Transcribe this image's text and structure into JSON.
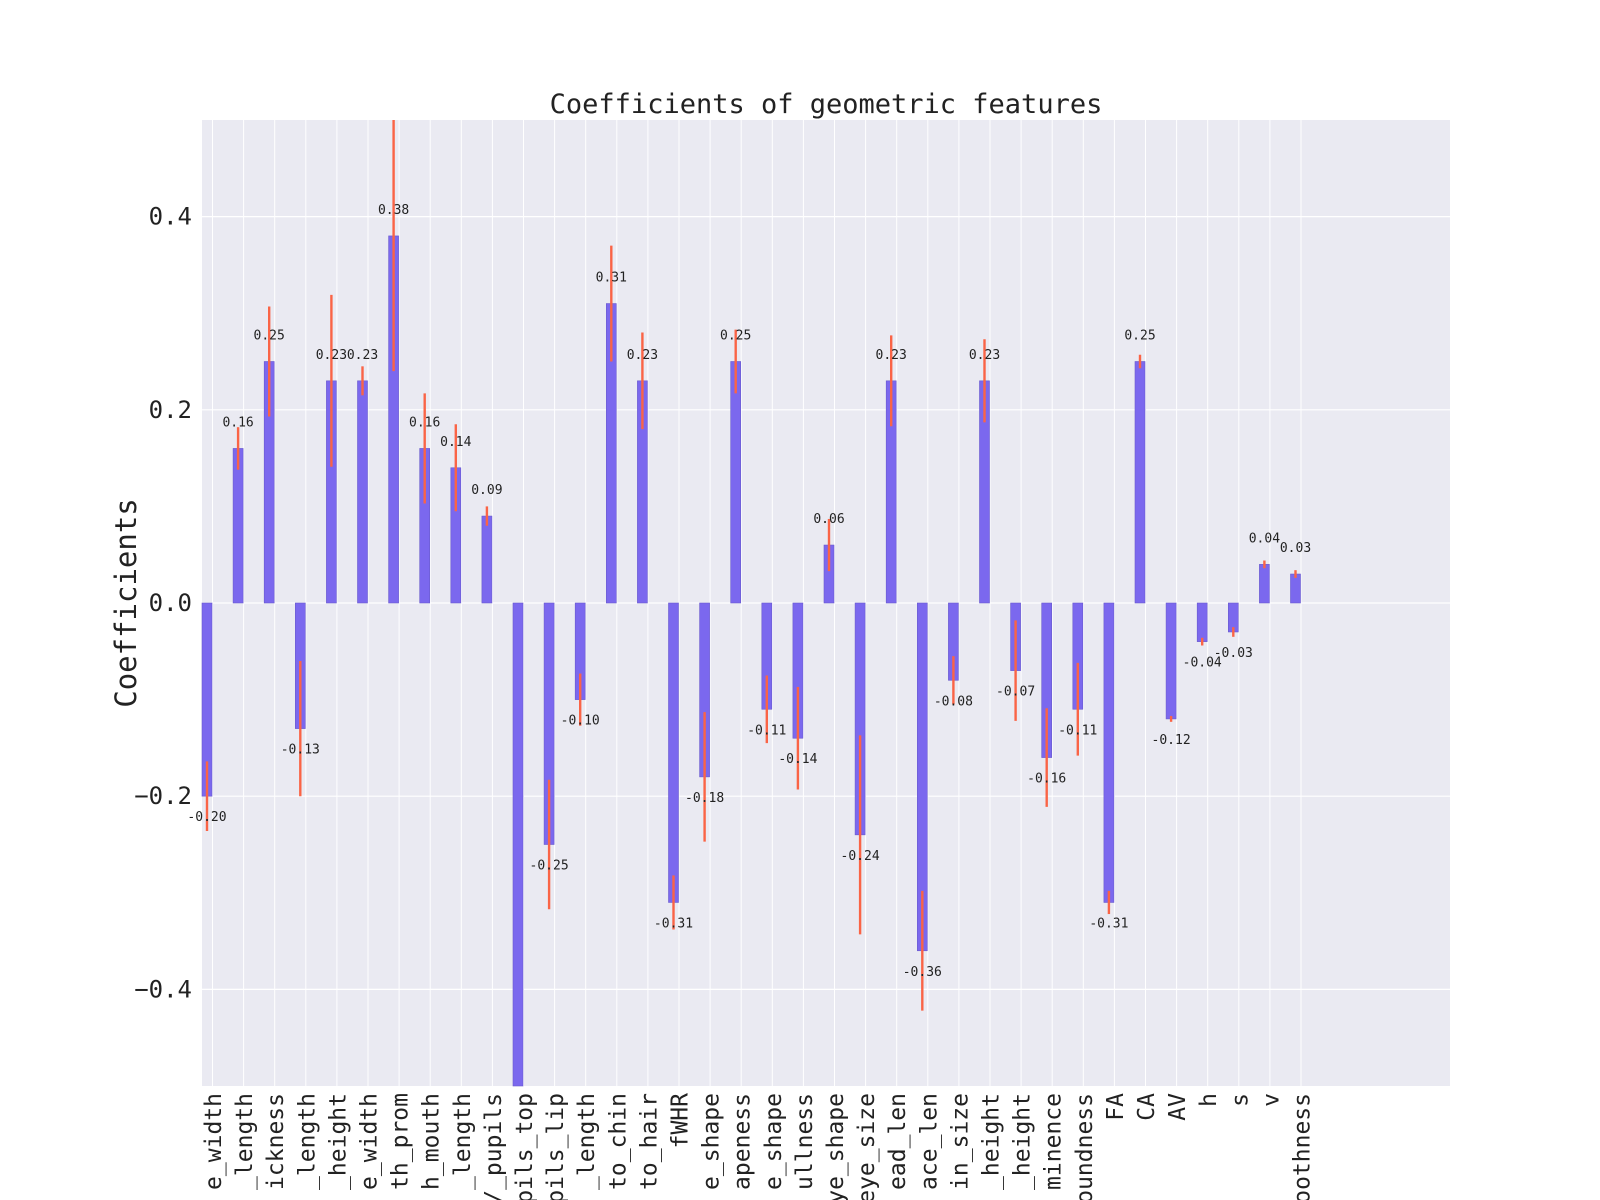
{
  "colors": {
    "plot_background": "#eaeaf2",
    "grid": "#ffffff",
    "bar": "#7b68ee",
    "bar_edge": "#6a5acd",
    "error_bar": "#fa6446"
  },
  "chart_data": {
    "type": "bar",
    "title": "Coefficients of geometric features",
    "xlabel": "",
    "ylabel": "Coefficients",
    "ylim": [
      -0.5,
      0.5
    ],
    "yticks": [
      -0.4,
      -0.2,
      0.0,
      0.2,
      0.4
    ],
    "ytick_labels": [
      "−0.4",
      "−0.2",
      "0.0",
      "0.2",
      "0.4"
    ],
    "grid": true,
    "legend": "none",
    "categories": [
      "e_width",
      "_length",
      "ickness",
      "_length",
      "_height",
      "e_width",
      "th_prom",
      "h_mouth",
      "_length",
      "/_pupils",
      "pils_top",
      "pils_lip",
      "_length",
      "to_chin",
      "to_hair",
      "fWHR",
      "e_shape",
      "apeness",
      "e_shape",
      "ullness",
      "ye_shape",
      "eye_size",
      "ead_len",
      "ace_len",
      "in_size",
      "_height",
      "_height",
      "minence",
      "oundness",
      "FA",
      "CA",
      "AV",
      "h",
      "s",
      "v",
      "oothness"
    ],
    "values": [
      -0.2,
      0.16,
      0.25,
      -0.13,
      0.23,
      0.23,
      0.38,
      0.16,
      0.14,
      0.09,
      -0.5,
      -0.25,
      -0.1,
      0.31,
      0.23,
      -0.31,
      -0.18,
      0.25,
      -0.11,
      -0.14,
      0.06,
      -0.24,
      0.23,
      -0.36,
      -0.08,
      0.23,
      -0.07,
      -0.16,
      -0.11,
      -0.31,
      0.25,
      -0.12,
      -0.04,
      -0.03,
      0.04,
      0.03
    ],
    "value_labels": [
      "-0.20",
      "0.16",
      "0.25",
      "-0.13",
      "0.23",
      "0.23",
      "0.38",
      "0.16",
      "0.14",
      "0.09",
      "",
      "-0.25",
      "-0.10",
      "0.31",
      "0.23",
      "-0.31",
      "-0.18",
      "0.25",
      "-0.11",
      "-0.14",
      "0.06",
      "-0.24",
      "0.23",
      "-0.36",
      "-0.08",
      "0.23",
      "-0.07",
      "-0.16",
      "-0.11",
      "-0.31",
      "0.25",
      "-0.12",
      "-0.04",
      "-0.03",
      "0.04",
      "0.03"
    ],
    "errors": [
      0.036,
      0.022,
      0.057,
      0.07,
      0.089,
      0.015,
      0.14,
      0.057,
      0.045,
      0.01,
      0,
      0.067,
      0.027,
      0.06,
      0.05,
      0.028,
      0.067,
      0.033,
      0.035,
      0.053,
      0.027,
      0.103,
      0.047,
      0.062,
      0.025,
      0.043,
      0.052,
      0.051,
      0.048,
      0.012,
      0.007,
      0.003,
      0.004,
      0.005,
      0.004,
      0.004
    ]
  }
}
